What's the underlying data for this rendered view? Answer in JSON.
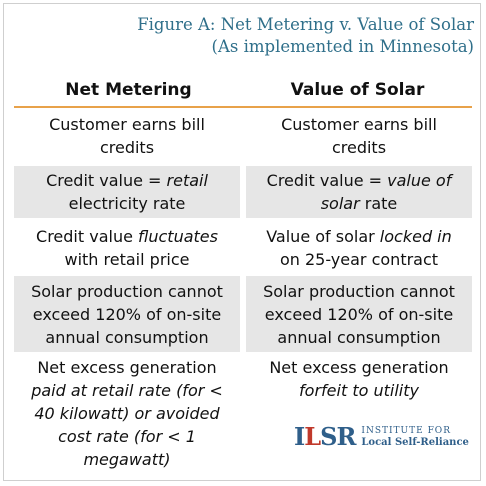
{
  "title": {
    "line1": "Figure A: Net Metering v. Value of Solar",
    "line2": "(As implemented in Minnesota)"
  },
  "headers": {
    "left": "Net Metering",
    "right": "Value of Solar"
  },
  "rows": [
    {
      "left": [
        "Customer earns bill",
        "credits"
      ],
      "right": [
        "Customer earns bill",
        "credits"
      ]
    },
    {
      "left_a": "Credit value = ",
      "left_b": "retail",
      "left_c": "electricity rate",
      "right_a": "Credit value = ",
      "right_b": "value of",
      "right_c_i": "solar",
      "right_c": " rate"
    },
    {
      "left_a": "Credit value ",
      "left_b": "fluctuates",
      "left_c": "with retail price",
      "right_a": "Value of solar ",
      "right_b": "locked in",
      "right_c": "on 25-year contract"
    },
    {
      "left": [
        "Solar production cannot",
        "exceed 120% of on-site",
        "annual consumption"
      ],
      "right": [
        "Solar production cannot",
        "exceed 120% of on-site",
        "annual consumption"
      ]
    },
    {
      "left_a": "Net excess generation",
      "left_b": "paid at retail rate (for <",
      "left_c": "40 kilowatt) or avoided",
      "left_d": "cost rate (for < 1",
      "left_e": "megawatt)",
      "right_a": "Net excess generation",
      "right_b": "forfeit to utility"
    }
  ],
  "logo": {
    "mark_a": "I",
    "mark_b": "L",
    "mark_c": "SR",
    "line1": "INSTITUTE FOR",
    "line2": "Local Self-Reliance"
  }
}
